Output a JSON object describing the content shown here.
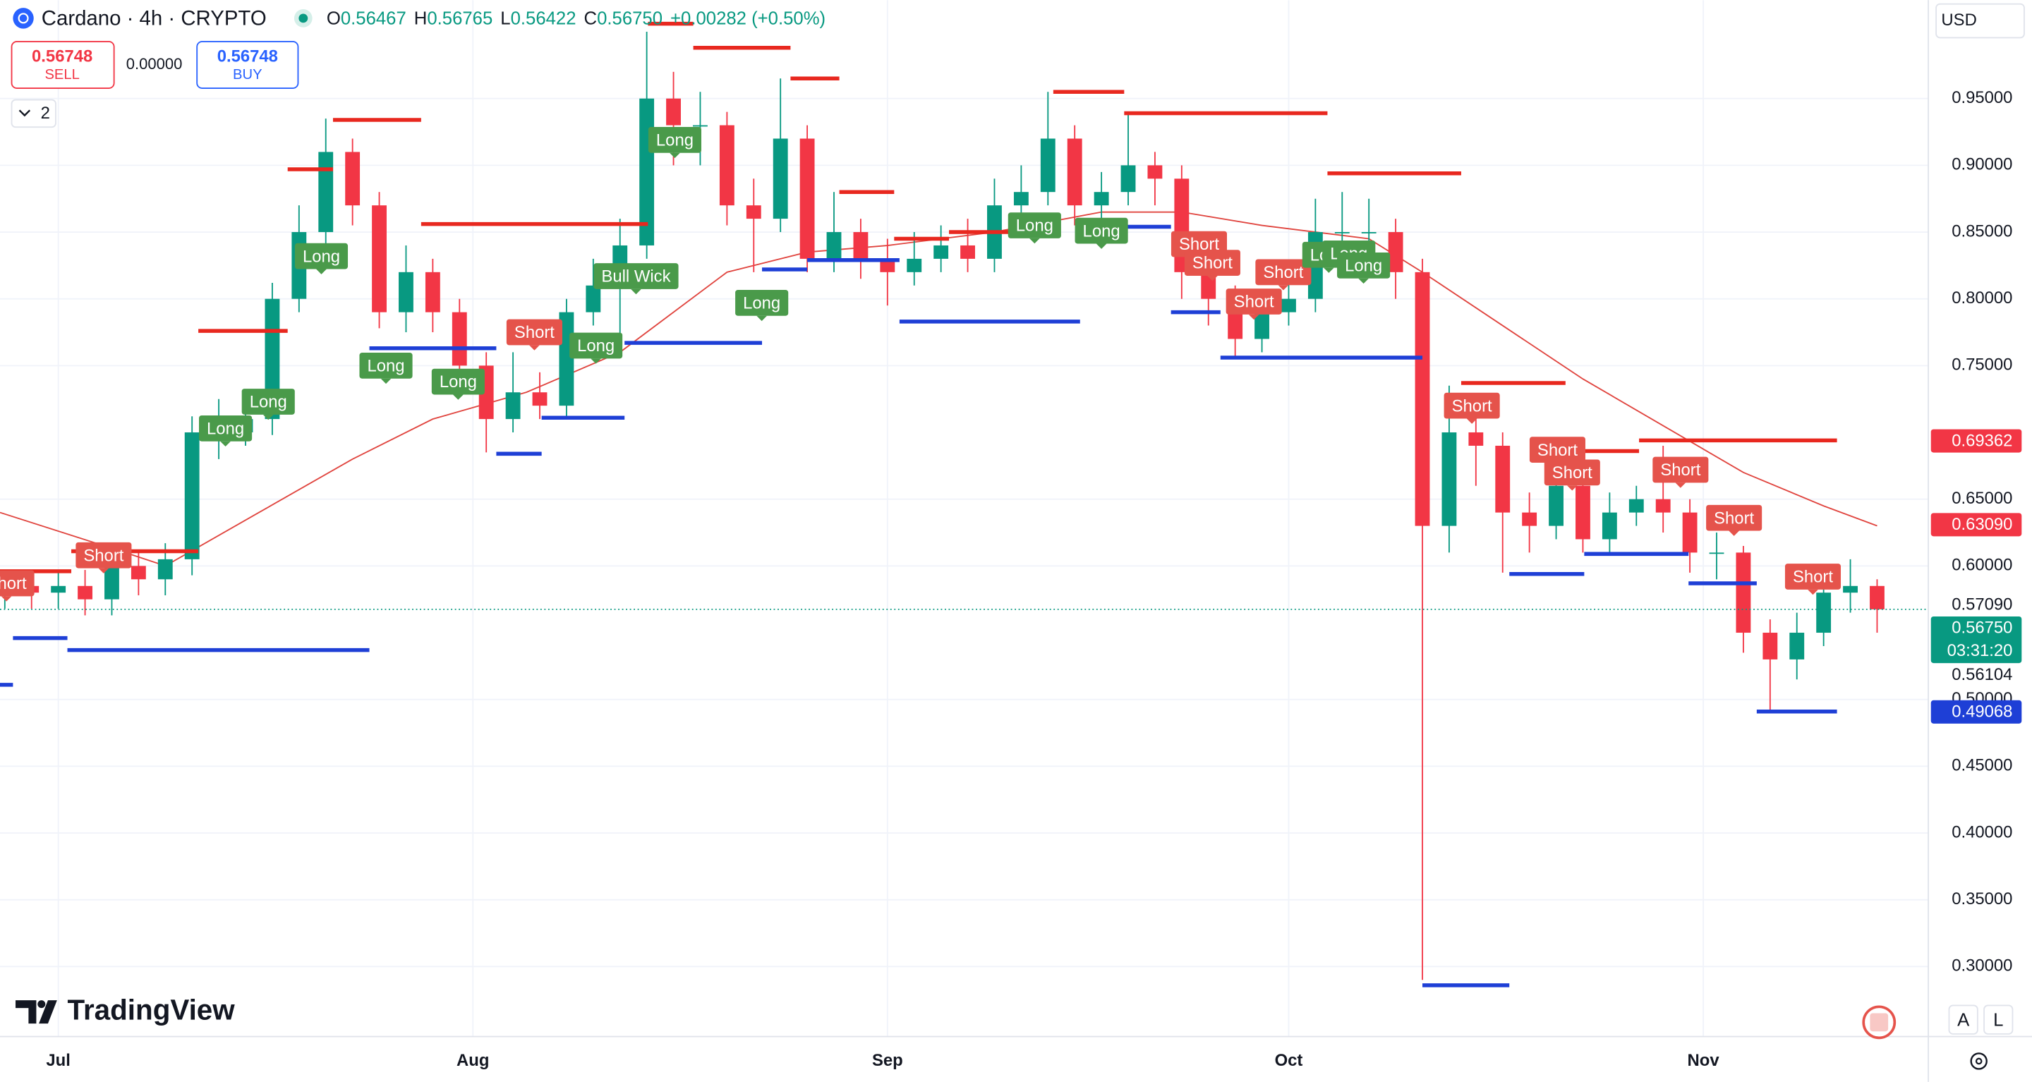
{
  "header": {
    "symbol": "Cardano · 4h · CRYPTO",
    "o_label": "O",
    "open": "0.56467",
    "h_label": "H",
    "high": "0.56765",
    "l_label": "L",
    "low": "0.56422",
    "c_label": "C",
    "close": "0.56750",
    "change": "+0.00282 (+0.50%)"
  },
  "trade": {
    "sell_price": "0.56748",
    "sell_label": "SELL",
    "spread": "0.00000",
    "buy_price": "0.56748",
    "buy_label": "BUY"
  },
  "indicator_count": "2",
  "currency": "USD",
  "brand": "TradingView",
  "scale_buttons": [
    "A",
    "L"
  ],
  "chart_data": {
    "type": "candlestick",
    "up_color": "#089981",
    "down_color": "#f23645",
    "x": [
      -4,
      -2,
      0,
      2,
      4,
      6,
      8,
      10,
      12,
      14,
      16,
      18,
      20,
      22,
      24,
      26,
      28,
      30,
      32,
      34,
      36,
      38,
      40,
      42,
      44,
      46,
      48,
      50,
      52,
      54,
      56,
      58,
      60,
      62,
      64,
      66,
      68,
      70,
      72,
      74,
      76,
      78,
      80,
      82,
      84,
      86,
      88,
      90,
      92,
      94,
      96,
      98,
      100,
      102,
      104,
      106,
      108,
      110,
      112,
      114,
      116,
      118,
      120,
      122,
      124,
      126,
      128,
      130,
      132,
      134,
      136
    ],
    "open": [
      0.58,
      0.585,
      0.58,
      0.585,
      0.575,
      0.6,
      0.59,
      0.605,
      0.7,
      0.7,
      0.71,
      0.8,
      0.85,
      0.91,
      0.87,
      0.79,
      0.82,
      0.79,
      0.75,
      0.71,
      0.73,
      0.72,
      0.79,
      0.81,
      0.84,
      0.95,
      0.93,
      0.93,
      0.87,
      0.86,
      0.92,
      0.83,
      0.85,
      0.83,
      0.82,
      0.83,
      0.84,
      0.83,
      0.87,
      0.88,
      0.92,
      0.87,
      0.88,
      0.9,
      0.89,
      0.82,
      0.8,
      0.77,
      0.79,
      0.8,
      0.85,
      0.85,
      0.85,
      0.82,
      0.63,
      0.7,
      0.69,
      0.64,
      0.63,
      0.66,
      0.62,
      0.64,
      0.65,
      0.64,
      0.61,
      0.61,
      0.55,
      0.53,
      0.55,
      0.58,
      0.585
    ],
    "high": [
      0.597,
      0.597,
      0.597,
      0.597,
      0.612,
      0.612,
      0.617,
      0.712,
      0.725,
      0.73,
      0.812,
      0.87,
      0.935,
      0.92,
      0.88,
      0.84,
      0.83,
      0.8,
      0.76,
      0.76,
      0.745,
      0.8,
      0.83,
      0.86,
      1.0,
      0.97,
      0.955,
      0.94,
      0.89,
      0.965,
      0.93,
      0.88,
      0.86,
      0.845,
      0.85,
      0.855,
      0.86,
      0.89,
      0.9,
      0.955,
      0.93,
      0.895,
      0.94,
      0.91,
      0.9,
      0.83,
      0.81,
      0.8,
      0.82,
      0.875,
      0.88,
      0.875,
      0.86,
      0.83,
      0.735,
      0.72,
      0.7,
      0.655,
      0.685,
      0.67,
      0.655,
      0.66,
      0.69,
      0.65,
      0.625,
      0.615,
      0.56,
      0.565,
      0.595,
      0.605,
      0.59
    ],
    "low": [
      0.568,
      0.568,
      0.568,
      0.563,
      0.563,
      0.578,
      0.578,
      0.593,
      0.68,
      0.69,
      0.698,
      0.79,
      0.84,
      0.855,
      0.778,
      0.775,
      0.775,
      0.738,
      0.685,
      0.7,
      0.71,
      0.71,
      0.78,
      0.765,
      0.83,
      0.9,
      0.9,
      0.855,
      0.82,
      0.85,
      0.82,
      0.82,
      0.815,
      0.795,
      0.81,
      0.82,
      0.82,
      0.82,
      0.855,
      0.87,
      0.855,
      0.85,
      0.87,
      0.87,
      0.8,
      0.78,
      0.755,
      0.76,
      0.78,
      0.79,
      0.83,
      0.83,
      0.8,
      0.29,
      0.61,
      0.66,
      0.595,
      0.61,
      0.62,
      0.61,
      0.61,
      0.63,
      0.625,
      0.595,
      0.59,
      0.535,
      0.49,
      0.515,
      0.54,
      0.565,
      0.55
    ],
    "close": [
      0.585,
      0.58,
      0.585,
      0.575,
      0.6,
      0.59,
      0.605,
      0.7,
      0.7,
      0.71,
      0.8,
      0.85,
      0.91,
      0.87,
      0.79,
      0.82,
      0.79,
      0.75,
      0.71,
      0.73,
      0.72,
      0.79,
      0.81,
      0.84,
      0.95,
      0.93,
      0.93,
      0.87,
      0.86,
      0.92,
      0.83,
      0.85,
      0.83,
      0.82,
      0.83,
      0.84,
      0.83,
      0.87,
      0.88,
      0.92,
      0.87,
      0.88,
      0.9,
      0.89,
      0.82,
      0.8,
      0.77,
      0.79,
      0.8,
      0.85,
      0.85,
      0.85,
      0.82,
      0.63,
      0.7,
      0.69,
      0.64,
      0.63,
      0.66,
      0.62,
      0.64,
      0.65,
      0.64,
      0.61,
      0.61,
      0.55,
      0.53,
      0.55,
      0.58,
      0.585,
      0.5675
    ],
    "ma": {
      "color": "#e0443e",
      "x": [
        -4.36,
        5,
        8,
        15,
        22,
        28,
        35,
        42,
        46,
        50,
        56,
        62,
        70,
        78,
        84,
        90,
        98,
        102,
        108,
        114,
        120,
        126,
        132,
        136
      ],
      "values": [
        0.64,
        0.61,
        0.6,
        0.64,
        0.68,
        0.71,
        0.73,
        0.76,
        0.79,
        0.82,
        0.835,
        0.84,
        0.85,
        0.865,
        0.865,
        0.855,
        0.845,
        0.82,
        0.78,
        0.74,
        0.705,
        0.67,
        0.645,
        0.63
      ]
    },
    "resistance": {
      "color": "#e8281f",
      "levels": [
        {
          "value": 0.596,
          "start": -4.36,
          "end": 0.97
        },
        {
          "value": 0.611,
          "start": 0.97,
          "end": 10.47
        },
        {
          "value": 0.776,
          "start": 10.47,
          "end": 17.15
        },
        {
          "value": 0.897,
          "start": 17.15,
          "end": 20.54
        },
        {
          "value": 0.934,
          "start": 20.54,
          "end": 27.13
        },
        {
          "value": 0.856,
          "start": 27.13,
          "end": 44.09
        },
        {
          "value": 1.006,
          "start": 44.09,
          "end": 47.48
        },
        {
          "value": 0.988,
          "start": 47.48,
          "end": 54.75
        },
        {
          "value": 0.965,
          "start": 54.75,
          "end": 58.4
        },
        {
          "value": 0.88,
          "start": 58.4,
          "end": 62.5
        },
        {
          "value": 0.845,
          "start": 62.5,
          "end": 66.6
        },
        {
          "value": 0.85,
          "start": 66.6,
          "end": 74.4
        },
        {
          "value": 0.955,
          "start": 74.4,
          "end": 79.7
        },
        {
          "value": 0.939,
          "start": 79.7,
          "end": 94.9
        },
        {
          "value": 0.894,
          "start": 94.9,
          "end": 104.9
        },
        {
          "value": 0.737,
          "start": 104.9,
          "end": 112.7
        },
        {
          "value": 0.686,
          "start": 112.7,
          "end": 118.2
        },
        {
          "value": 0.694,
          "start": 118.2,
          "end": 133.0
        }
      ]
    },
    "support": {
      "color": "#1e3fd6",
      "levels": [
        {
          "value": 0.511,
          "start": -4.36,
          "end": -3.39
        },
        {
          "value": 0.546,
          "start": -3.39,
          "end": 0.68
        },
        {
          "value": 0.537,
          "start": 0.68,
          "end": 23.26
        },
        {
          "value": 0.763,
          "start": 23.26,
          "end": 32.75
        },
        {
          "value": 0.684,
          "start": 32.75,
          "end": 36.14
        },
        {
          "value": 0.711,
          "start": 36.14,
          "end": 42.34
        },
        {
          "value": 0.767,
          "start": 42.34,
          "end": 52.62
        },
        {
          "value": 0.822,
          "start": 52.62,
          "end": 56.0
        },
        {
          "value": 0.829,
          "start": 56.0,
          "end": 62.9
        },
        {
          "value": 0.783,
          "start": 62.9,
          "end": 76.4
        },
        {
          "value": 0.854,
          "start": 76.4,
          "end": 83.2
        },
        {
          "value": 0.79,
          "start": 83.2,
          "end": 86.9
        },
        {
          "value": 0.756,
          "start": 86.9,
          "end": 102.0
        },
        {
          "value": 0.286,
          "start": 102.0,
          "end": 108.5
        },
        {
          "value": 0.594,
          "start": 108.5,
          "end": 114.1
        },
        {
          "value": 0.609,
          "start": 114.1,
          "end": 121.9
        },
        {
          "value": 0.587,
          "start": 121.9,
          "end": 127.0
        },
        {
          "value": 0.491,
          "start": 127.0,
          "end": 133.0
        }
      ]
    },
    "signals": [
      {
        "text": "Short",
        "x": -3.88,
        "y": 0.587,
        "color": "#e5534b"
      },
      {
        "text": "Short",
        "x": 3.39,
        "y": 0.608,
        "color": "#e5534b"
      },
      {
        "text": "Long",
        "x": 12.5,
        "y": 0.703,
        "color": "#4a9a4a"
      },
      {
        "text": "Long",
        "x": 15.7,
        "y": 0.723,
        "color": "#4a9a4a"
      },
      {
        "text": "Long",
        "x": 19.67,
        "y": 0.832,
        "color": "#4a9a4a"
      },
      {
        "text": "Long",
        "x": 24.5,
        "y": 0.75,
        "color": "#4a9a4a"
      },
      {
        "text": "Long",
        "x": 29.9,
        "y": 0.738,
        "color": "#4a9a4a"
      },
      {
        "text": "Short",
        "x": 35.6,
        "y": 0.775,
        "color": "#e5534b"
      },
      {
        "text": "Long",
        "x": 40.2,
        "y": 0.765,
        "color": "#4a9a4a"
      },
      {
        "text": "Bull Wick",
        "x": 43.2,
        "y": 0.817,
        "color": "#4a9a4a"
      },
      {
        "text": "Long",
        "x": 46.1,
        "y": 0.919,
        "color": "#4a9a4a"
      },
      {
        "text": "Long",
        "x": 52.6,
        "y": 0.797,
        "color": "#4a9a4a"
      },
      {
        "text": "Long",
        "x": 73.0,
        "y": 0.855,
        "color": "#4a9a4a"
      },
      {
        "text": "Long",
        "x": 78.0,
        "y": 0.851,
        "color": "#4a9a4a"
      },
      {
        "text": "Short",
        "x": 85.3,
        "y": 0.841,
        "color": "#e5534b"
      },
      {
        "text": "Short",
        "x": 86.3,
        "y": 0.827,
        "color": "#e5534b"
      },
      {
        "text": "Short",
        "x": 89.4,
        "y": 0.798,
        "color": "#e5534b"
      },
      {
        "text": "Short",
        "x": 91.6,
        "y": 0.82,
        "color": "#e5534b"
      },
      {
        "text": "Long",
        "x": 95.0,
        "y": 0.833,
        "color": "#4a9a4a"
      },
      {
        "text": "Long",
        "x": 96.5,
        "y": 0.834,
        "color": "#4a9a4a"
      },
      {
        "text": "Long",
        "x": 97.6,
        "y": 0.825,
        "color": "#4a9a4a"
      },
      {
        "text": "Short",
        "x": 105.7,
        "y": 0.72,
        "color": "#e5534b"
      },
      {
        "text": "Short",
        "x": 112.1,
        "y": 0.687,
        "color": "#e5534b"
      },
      {
        "text": "Short",
        "x": 113.2,
        "y": 0.67,
        "color": "#e5534b"
      },
      {
        "text": "Short",
        "x": 121.3,
        "y": 0.672,
        "color": "#e5534b"
      },
      {
        "text": "Short",
        "x": 125.3,
        "y": 0.636,
        "color": "#e5534b"
      },
      {
        "text": "Short",
        "x": 131.2,
        "y": 0.592,
        "color": "#e5534b"
      }
    ],
    "last_price": {
      "value": 0.5675,
      "color": "#089981"
    },
    "price_tags": [
      {
        "value": 0.69362,
        "label": "0.69362",
        "color": "#f23645"
      },
      {
        "value": 0.6309,
        "label": "0.63090",
        "color": "#f23645"
      },
      {
        "value": 0.5709,
        "label": "0.57090",
        "color": null
      },
      {
        "value": 0.5675,
        "label": "0.56750",
        "sub": "03:31:20",
        "color": "#089981"
      },
      {
        "value": 0.56104,
        "label": "0.56104",
        "color": null
      },
      {
        "value": 0.49068,
        "label": "0.49068",
        "color": "#1e3fd6"
      }
    ],
    "xlim": [
      -4.36,
      139.83
    ],
    "xticks": [
      {
        "value": 0,
        "label": "Jul"
      },
      {
        "value": 31,
        "label": "Aug"
      },
      {
        "value": 62,
        "label": "Sep"
      },
      {
        "value": 92,
        "label": "Oct"
      },
      {
        "value": 123,
        "label": "Nov"
      }
    ],
    "ylim": [
      0.2476,
      1.0237
    ],
    "yticks": [
      {
        "value": 0.3,
        "label": "0.30000"
      },
      {
        "value": 0.35,
        "label": "0.35000"
      },
      {
        "value": 0.4,
        "label": "0.40000"
      },
      {
        "value": 0.45,
        "label": "0.45000"
      },
      {
        "value": 0.5,
        "label": "0.50000"
      },
      {
        "value": 0.6,
        "label": "0.60000"
      },
      {
        "value": 0.65,
        "label": "0.65000"
      },
      {
        "value": 0.75,
        "label": "0.75000"
      },
      {
        "value": 0.8,
        "label": "0.80000"
      },
      {
        "value": 0.85,
        "label": "0.85000"
      },
      {
        "value": 0.9,
        "label": "0.90000"
      },
      {
        "value": 0.95,
        "label": "0.95000"
      }
    ],
    "grid": true
  }
}
